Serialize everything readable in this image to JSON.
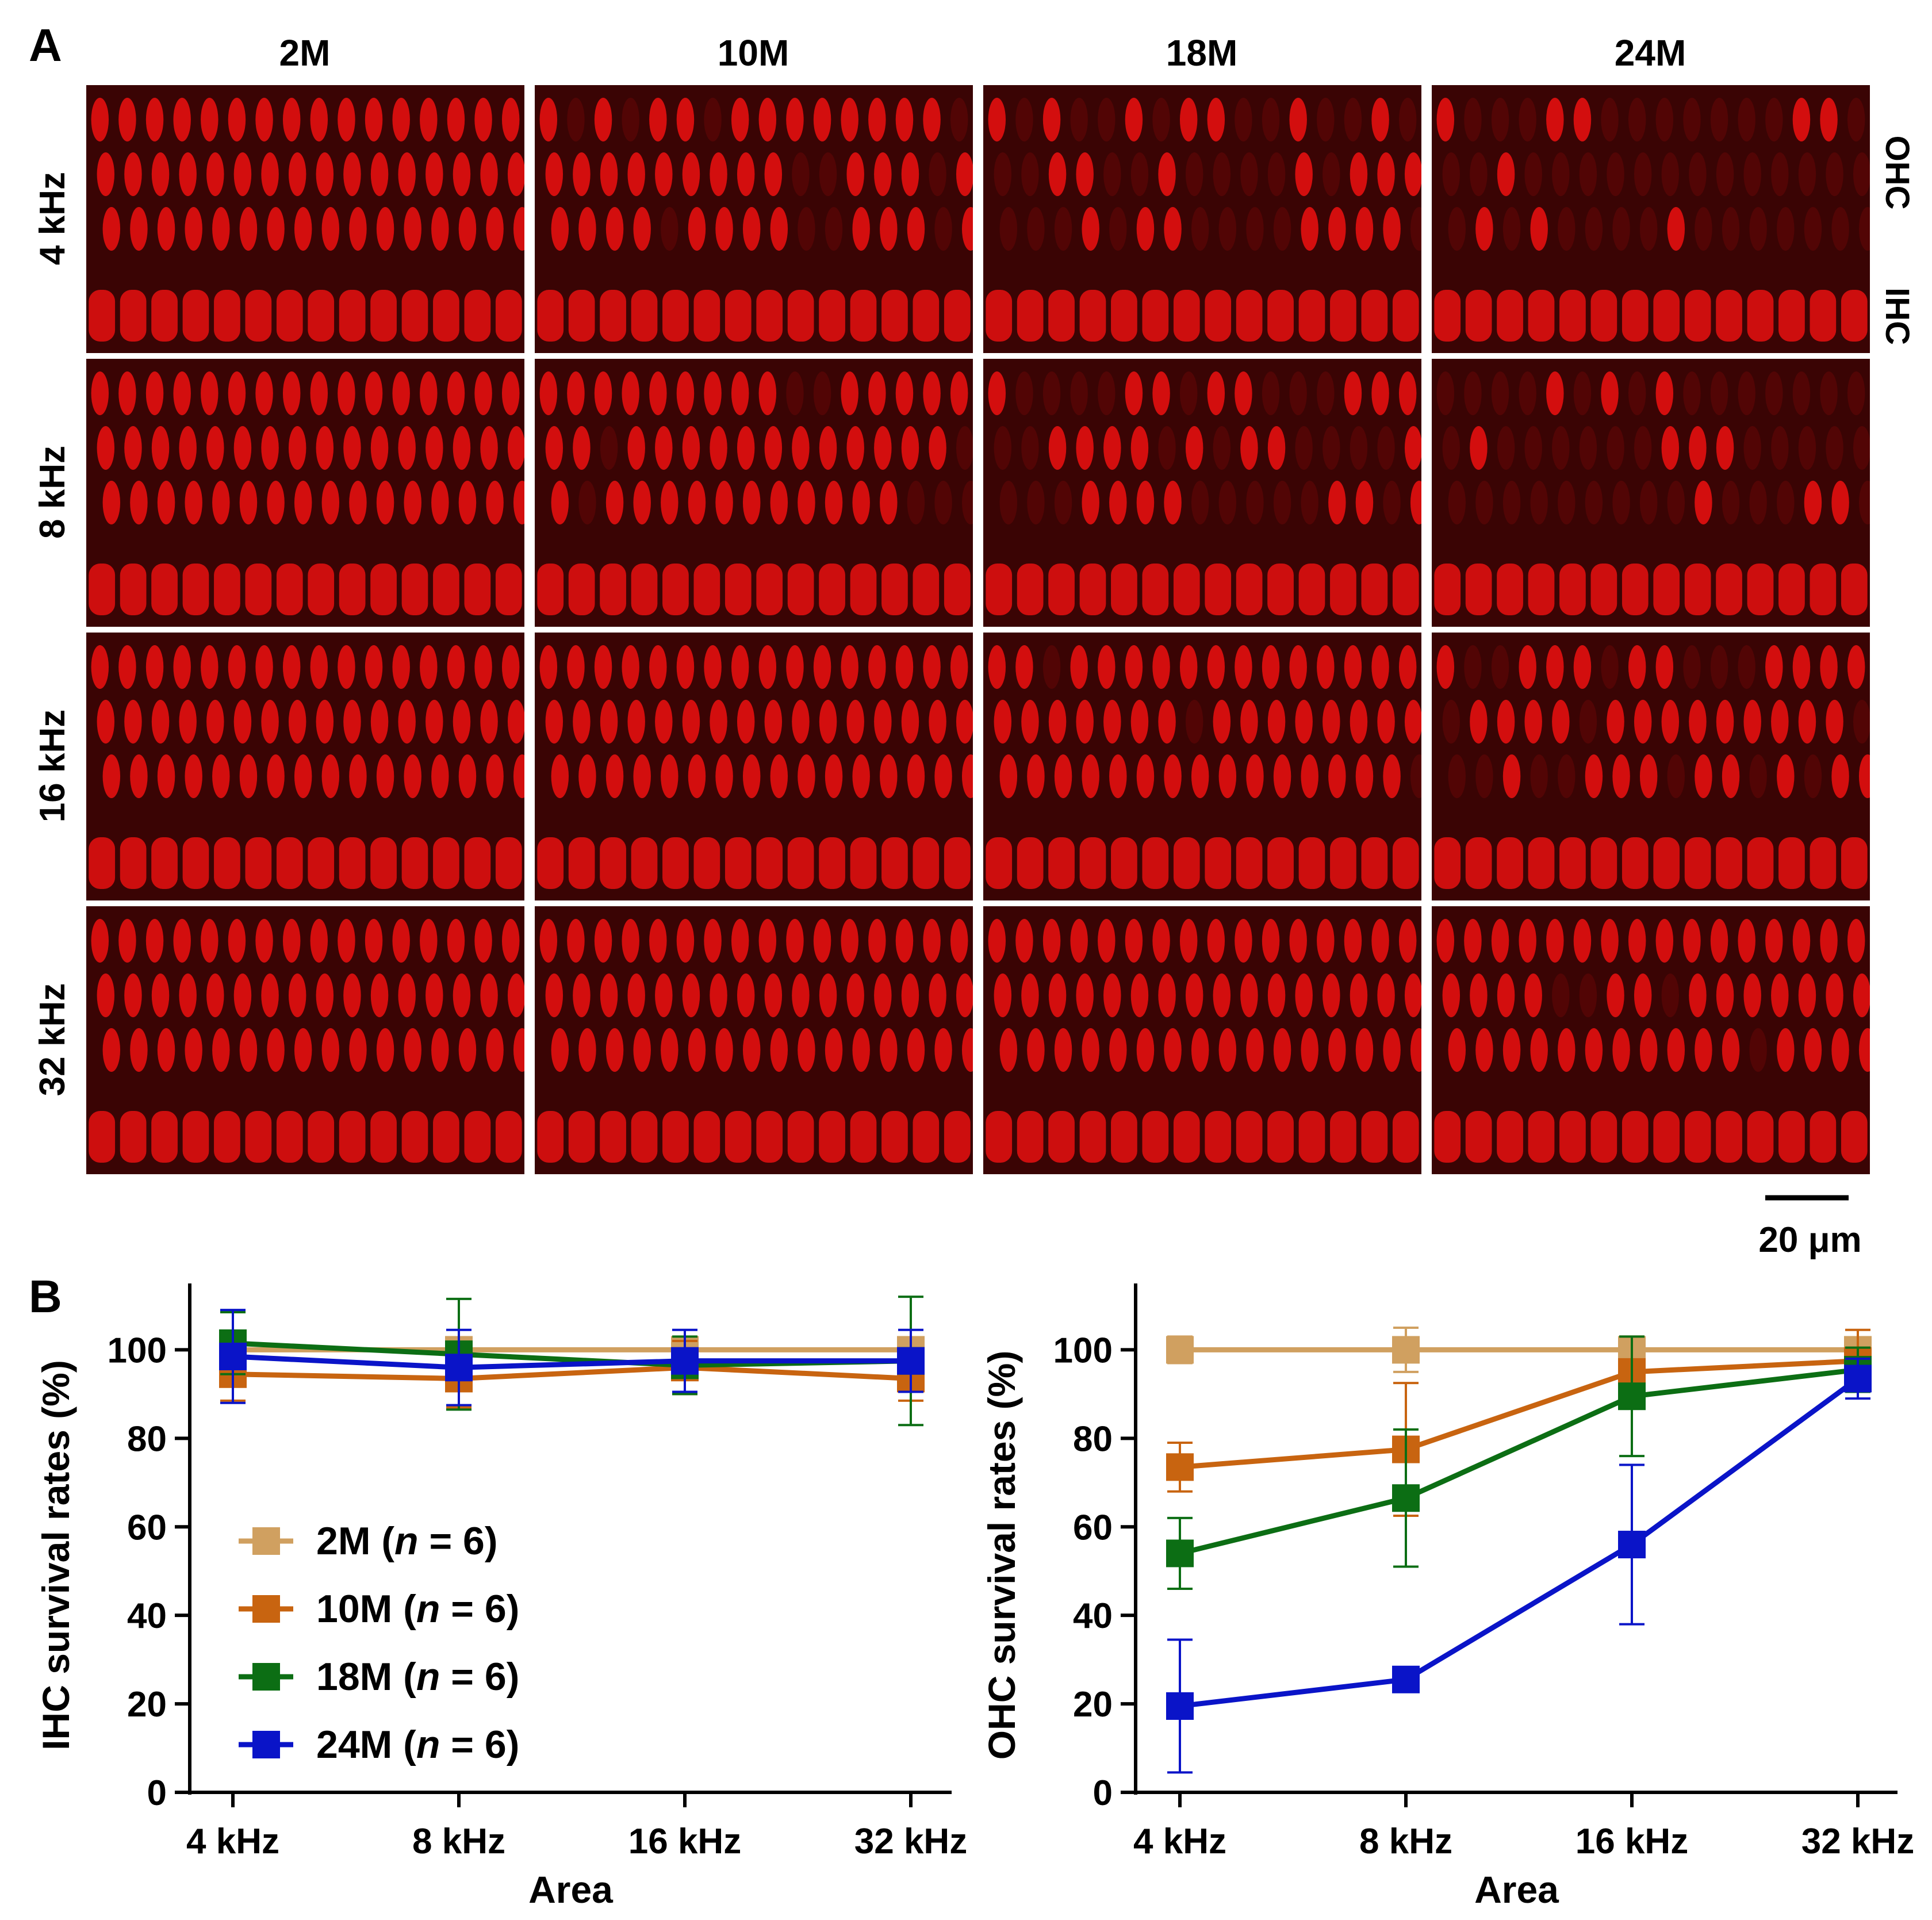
{
  "panel_a": {
    "label": "A",
    "ages": [
      "2M",
      "10M",
      "18M",
      "24M"
    ],
    "freqs": [
      "4 kHz",
      "8 kHz",
      "16 kHz",
      "32 kHz"
    ],
    "side_labels": [
      "OHC",
      "IHC"
    ],
    "scale_bar": "20 μm",
    "colors": {
      "stain": "#e81010",
      "background": "#3a0404"
    }
  },
  "panel_b": {
    "label": "B"
  },
  "chart_data": [
    {
      "type": "line",
      "title": "",
      "xlabel": "Area",
      "ylabel": "IHC survival rates (%)",
      "categories": [
        "4 kHz",
        "8 kHz",
        "16 kHz",
        "32 kHz"
      ],
      "ylim": [
        0,
        115
      ],
      "yticks": [
        0,
        20,
        40,
        60,
        80,
        100
      ],
      "legend_placement": "lower-left",
      "series": [
        {
          "name": "2M",
          "n_label": "(n = 6)",
          "color": "#d0a060",
          "values": [
            100,
            100,
            100,
            100
          ],
          "err": [
            2,
            2,
            2,
            2
          ]
        },
        {
          "name": "10M",
          "n_label": "(n = 6)",
          "color": "#c86410",
          "values": [
            94.5,
            93.5,
            96,
            93.5
          ],
          "err": [
            6,
            6.5,
            6,
            5
          ]
        },
        {
          "name": "18M",
          "n_label": "(n = 6)",
          "color": "#0c6e14",
          "values": [
            101.5,
            99,
            96.5,
            97.5
          ],
          "err": [
            7,
            12.5,
            6.5,
            14.5
          ]
        },
        {
          "name": "24M",
          "n_label": "(n = 6)",
          "color": "#0a14c8",
          "values": [
            98.5,
            96,
            97.5,
            97.5
          ],
          "err": [
            10.5,
            8.5,
            7,
            7
          ]
        }
      ]
    },
    {
      "type": "line",
      "title": "",
      "xlabel": "Area",
      "ylabel": "OHC survival rates (%)",
      "categories": [
        "4 kHz",
        "8 kHz",
        "16 kHz",
        "32 kHz"
      ],
      "ylim": [
        0,
        115
      ],
      "yticks": [
        0,
        20,
        40,
        60,
        80,
        100
      ],
      "series": [
        {
          "name": "2M",
          "n_label": "(n = 6)",
          "color": "#d0a060",
          "values": [
            100,
            100,
            100,
            100
          ],
          "err": [
            3,
            5,
            2,
            2
          ]
        },
        {
          "name": "10M",
          "n_label": "(n = 6)",
          "color": "#c86410",
          "values": [
            73.5,
            77.5,
            95,
            97.5
          ],
          "err": [
            5.5,
            15,
            8,
            7
          ]
        },
        {
          "name": "18M",
          "n_label": "(n = 6)",
          "color": "#0c6e14",
          "values": [
            54,
            66.5,
            89.5,
            95.5
          ],
          "err": [
            8,
            15.5,
            13.5,
            5
          ]
        },
        {
          "name": "24M",
          "n_label": "(n = 6)",
          "color": "#0a14c8",
          "values": [
            19.5,
            25.5,
            56,
            93.5
          ],
          "err": [
            15,
            0,
            18,
            4.5
          ]
        }
      ]
    }
  ]
}
